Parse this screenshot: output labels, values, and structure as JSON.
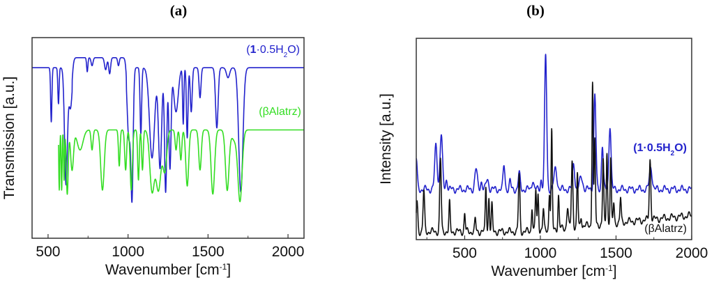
{
  "chart_data": [
    {
      "type": "line",
      "panel_title": "(a)",
      "xlabel": "Wavenumber [cm",
      "xlabel_sup": "-1",
      "xlabel_end": "]",
      "ylabel": "Transmission [a.u.]",
      "xlim": [
        400,
        2100
      ],
      "ylim": [
        0,
        1
      ],
      "xticks": [
        500,
        1000,
        1500,
        2000
      ],
      "minor_xticks": [
        750,
        1250,
        1750
      ],
      "grid": false,
      "series": [
        {
          "name": "(1·0.5H2O)",
          "label_parts": [
            "(",
            "1",
            "·0.5H",
            "2",
            "O)"
          ],
          "color": "#2222cc",
          "x_range": [
            400,
            2100
          ],
          "baseline": 0.85,
          "mode": "absorption",
          "peaks": [
            [
              520,
              0.27,
              4
            ],
            [
              565,
              0.18,
              4
            ],
            [
              612,
              0.58,
              9
            ],
            [
              640,
              0.2,
              10
            ],
            [
              745,
              0.07,
              4
            ],
            [
              775,
              0.04,
              6
            ],
            [
              860,
              0.06,
              7
            ],
            [
              885,
              0.08,
              6
            ],
            [
              940,
              0.04,
              5
            ],
            [
              1005,
              0.35,
              10
            ],
            [
              1025,
              0.62,
              7
            ],
            [
              1080,
              0.33,
              5
            ],
            [
              1150,
              0.45,
              16
            ],
            [
              1200,
              0.5,
              10
            ],
            [
              1235,
              0.62,
              7
            ],
            [
              1262,
              0.5,
              7
            ],
            [
              1300,
              0.22,
              14
            ],
            [
              1345,
              0.28,
              4
            ],
            [
              1370,
              0.35,
              5
            ],
            [
              1395,
              0.22,
              6
            ],
            [
              1450,
              0.15,
              6
            ],
            [
              1555,
              0.3,
              8
            ],
            [
              1625,
              0.05,
              10
            ],
            [
              1705,
              0.62,
              13
            ]
          ]
        },
        {
          "name": "(βAlatrz)",
          "label_parts": [
            "(βAlatrz)"
          ],
          "color": "#33dd22",
          "x_range": [
            565,
            2100
          ],
          "baseline": 0.54,
          "mode": "absorption",
          "peaks": [
            [
              570,
              0.3,
              3
            ],
            [
              585,
              0.3,
              3
            ],
            [
              600,
              0.25,
              3
            ],
            [
              620,
              0.32,
              6
            ],
            [
              650,
              0.2,
              9
            ],
            [
              700,
              0.1,
              18
            ],
            [
              775,
              0.1,
              6
            ],
            [
              840,
              0.3,
              11
            ],
            [
              945,
              0.18,
              5
            ],
            [
              985,
              0.2,
              6
            ],
            [
              1020,
              0.3,
              7
            ],
            [
              1065,
              0.25,
              5
            ],
            [
              1090,
              0.2,
              5
            ],
            [
              1150,
              0.3,
              14
            ],
            [
              1190,
              0.3,
              16
            ],
            [
              1230,
              0.2,
              12
            ],
            [
              1300,
              0.1,
              6
            ],
            [
              1330,
              0.15,
              6
            ],
            [
              1370,
              0.28,
              9
            ],
            [
              1450,
              0.2,
              8
            ],
            [
              1530,
              0.32,
              11
            ],
            [
              1620,
              0.3,
              11
            ],
            [
              1700,
              0.35,
              13
            ],
            [
              1665,
              0.05,
              18
            ]
          ]
        }
      ]
    },
    {
      "type": "line",
      "panel_title": "(b)",
      "xlabel": "Wavenumber [cm",
      "xlabel_sup": "-1",
      "xlabel_end": "]",
      "ylabel": "Intensity [a.u.]",
      "xlim": [
        180,
        2000
      ],
      "ylim": [
        0,
        1
      ],
      "xticks": [
        500,
        1000,
        1500,
        2000
      ],
      "minor_xticks": [
        250,
        750,
        1250,
        1750
      ],
      "grid": false,
      "series": [
        {
          "name": "(1·0.5H2O)",
          "label_parts": [
            "(",
            "1",
            "·0.5H",
            "2",
            "O)"
          ],
          "color": "#2222cc",
          "x_range": [
            180,
            2000
          ],
          "baseline": 0.25,
          "mode": "emission",
          "peaks": [
            [
              180,
              0.15,
              6
            ],
            [
              310,
              0.22,
              8
            ],
            [
              345,
              0.27,
              8
            ],
            [
              380,
              0.05,
              6
            ],
            [
              575,
              0.1,
              8
            ],
            [
              610,
              0.04,
              6
            ],
            [
              650,
              0.05,
              8
            ],
            [
              760,
              0.12,
              6
            ],
            [
              800,
              0.04,
              5
            ],
            [
              860,
              0.08,
              6
            ],
            [
              950,
              0.05,
              6
            ],
            [
              1005,
              0.05,
              5
            ],
            [
              1035,
              0.66,
              7
            ],
            [
              1100,
              0.1,
              10
            ],
            [
              1220,
              0.13,
              7
            ],
            [
              1270,
              0.06,
              10
            ],
            [
              1360,
              0.47,
              7
            ],
            [
              1410,
              0.22,
              6
            ],
            [
              1460,
              0.32,
              7
            ],
            [
              1730,
              0.11,
              9
            ]
          ]
        },
        {
          "name": "(βAlatrz)",
          "label_parts": [
            "(βAlatrz)"
          ],
          "color": "#111111",
          "x_range": [
            180,
            2000
          ],
          "baseline": 0.04,
          "mode": "emission",
          "peaks": [
            [
              185,
              0.15,
              5
            ],
            [
              230,
              0.2,
              5
            ],
            [
              340,
              0.36,
              5
            ],
            [
              400,
              0.14,
              4
            ],
            [
              500,
              0.09,
              4
            ],
            [
              570,
              0.06,
              4
            ],
            [
              640,
              0.22,
              4
            ],
            [
              660,
              0.17,
              4
            ],
            [
              680,
              0.13,
              4
            ],
            [
              860,
              0.28,
              5
            ],
            [
              945,
              0.12,
              4
            ],
            [
              970,
              0.2,
              4
            ],
            [
              985,
              0.18,
              4
            ],
            [
              1020,
              0.1,
              4
            ],
            [
              1060,
              0.18,
              4
            ],
            [
              1075,
              0.48,
              4
            ],
            [
              1120,
              0.16,
              4
            ],
            [
              1180,
              0.1,
              5
            ],
            [
              1210,
              0.33,
              5
            ],
            [
              1245,
              0.26,
              4
            ],
            [
              1270,
              0.05,
              4
            ],
            [
              1345,
              0.72,
              4
            ],
            [
              1360,
              0.42,
              4
            ],
            [
              1415,
              0.32,
              4
            ],
            [
              1440,
              0.36,
              4
            ],
            [
              1465,
              0.32,
              4
            ],
            [
              1485,
              0.1,
              4
            ],
            [
              1530,
              0.12,
              4
            ],
            [
              1725,
              0.3,
              5
            ]
          ]
        }
      ]
    }
  ]
}
